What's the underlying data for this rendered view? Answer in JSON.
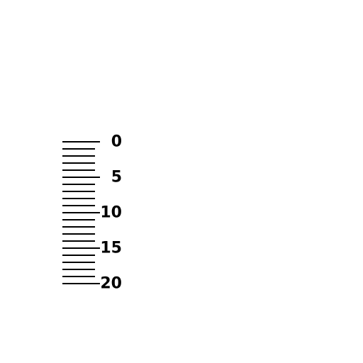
{
  "scale": {
    "min": 0,
    "max": 20,
    "minor_step": 1,
    "major_step": 5,
    "labels": [
      "0",
      "5",
      "10",
      "15",
      "20"
    ],
    "line_color": "#000000",
    "background_color": "#ffffff"
  }
}
